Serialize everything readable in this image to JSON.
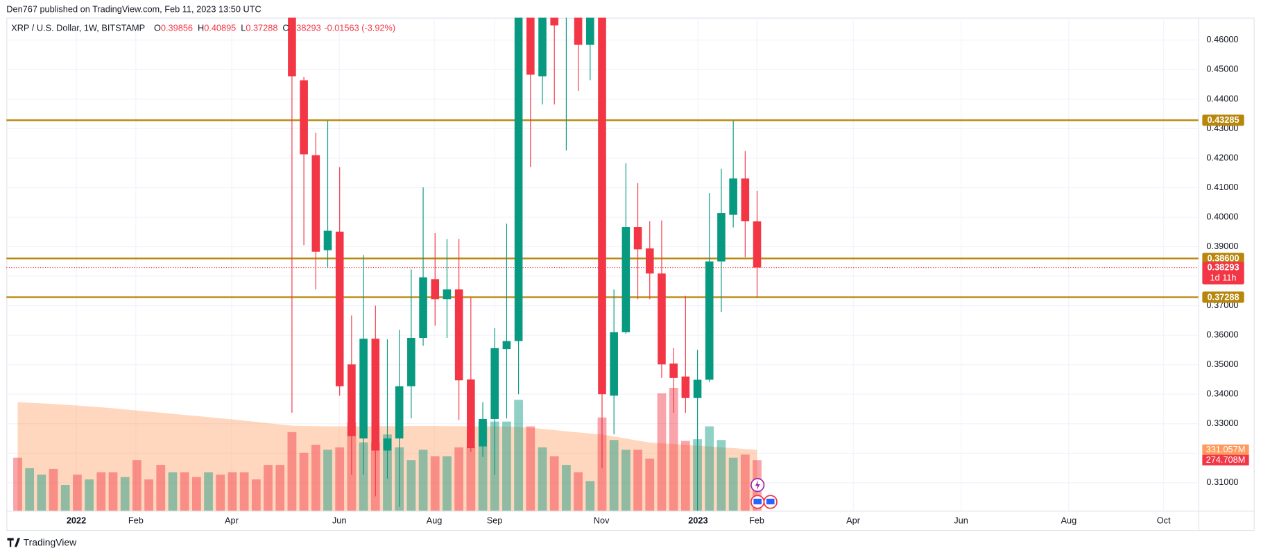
{
  "header": {
    "published": "Den767 published on TradingView.com, Feb 11, 2023 13:50 UTC"
  },
  "footer": {
    "brand": "TradingView"
  },
  "chart_data": {
    "type": "candlestick",
    "title": "XRP / U.S. Dollar, 1W, BITSTAMP",
    "legend_keys": [
      "O",
      "H",
      "L",
      "C"
    ],
    "change": "-0.01563 (-3.92%)",
    "countdown": "1d 11h",
    "up_color": "#089981",
    "down_color": "#f23645",
    "level_color": "#b8860b",
    "grid": true,
    "categories": [
      null,
      null,
      null,
      null,
      null,
      null,
      null,
      null,
      null,
      null,
      null,
      null,
      null,
      null,
      null,
      null,
      null,
      null,
      null,
      null,
      null,
      null,
      null,
      null,
      null,
      null,
      null,
      null,
      null,
      null,
      null,
      null,
      null,
      null,
      null,
      null,
      null,
      null,
      null,
      null,
      null,
      null,
      null,
      null,
      null,
      null,
      null,
      null,
      null,
      null,
      null,
      null,
      null,
      null,
      null,
      null,
      null,
      null,
      null,
      null,
      null,
      null,
      null
    ],
    "candles": [
      null,
      null,
      null,
      null,
      null,
      null,
      null,
      null,
      null,
      null,
      null,
      null,
      null,
      null,
      null,
      null,
      null,
      null,
      null,
      null,
      null,
      null,
      null,
      [
        0.47,
        0.49,
        0.3337,
        0.4477
      ],
      [
        0.4464,
        0.4475,
        0.3905,
        0.4213
      ],
      [
        0.421,
        0.4286,
        0.3755,
        0.3883
      ],
      [
        0.3888,
        0.4327,
        0.3828,
        0.3954
      ],
      [
        0.3951,
        0.4169,
        0.3395,
        0.3427
      ],
      [
        0.3501,
        0.3667,
        0.3127,
        0.3258
      ],
      [
        0.325,
        0.3872,
        0.3127,
        0.3588
      ],
      [
        0.3588,
        0.37,
        0.3054,
        0.3209
      ],
      [
        0.3209,
        0.3586,
        0.3114,
        0.325
      ],
      [
        0.325,
        0.3618,
        0.3018,
        0.3427
      ],
      [
        0.3427,
        0.3823,
        0.3318,
        0.3591
      ],
      [
        0.3591,
        0.4101,
        0.3564,
        0.3796
      ],
      [
        0.379,
        0.3946,
        0.3632,
        0.3722
      ],
      [
        0.3722,
        0.3926,
        0.3591,
        0.3755
      ],
      [
        0.3755,
        0.3926,
        0.3313,
        0.3447
      ],
      [
        0.345,
        0.3727,
        0.3204,
        0.3217
      ],
      [
        0.3223,
        0.3373,
        0.3187,
        0.3316
      ],
      [
        0.3316,
        0.3624,
        0.3127,
        0.3556
      ],
      [
        0.3553,
        0.3978,
        0.3318,
        0.358
      ],
      [
        0.358,
        0.48,
        0.34,
        0.47
      ],
      [
        0.475,
        0.49,
        0.4169,
        0.4483
      ],
      [
        0.4477,
        0.48,
        0.4382,
        0.47
      ],
      [
        0.475,
        0.485,
        0.4382,
        0.465
      ],
      [
        0.47,
        0.485,
        0.4226,
        0.475
      ],
      [
        0.475,
        0.49,
        0.4428,
        0.4584
      ],
      [
        0.4584,
        0.485,
        0.4464,
        0.472
      ],
      [
        0.478,
        0.49,
        0.3149,
        0.34
      ],
      [
        0.3395,
        0.3755,
        0.3264,
        0.361
      ],
      [
        0.361,
        0.4183,
        0.3605,
        0.3967
      ],
      [
        0.3967,
        0.4115,
        0.3722,
        0.3891
      ],
      [
        0.3894,
        0.3986,
        0.3722,
        0.3809
      ],
      [
        0.3809,
        0.3989,
        0.3455,
        0.3501
      ],
      [
        0.3504,
        0.3556,
        0.3337,
        0.3455
      ],
      [
        0.346,
        0.3733,
        0.3337,
        0.3387
      ],
      [
        0.3387,
        0.355,
        0.3005,
        0.3449
      ],
      [
        0.3449,
        0.4082,
        0.3441,
        0.385
      ],
      [
        0.385,
        0.4164,
        0.3678,
        0.4014
      ],
      [
        0.4008,
        0.4327,
        0.3965,
        0.4131
      ],
      [
        0.4131,
        0.4224,
        0.3864,
        0.3986
      ],
      [
        0.39856,
        0.40895,
        0.37288,
        0.38293
      ]
    ],
    "volume": {
      "values": [
        288,
        231,
        196,
        227,
        140,
        196,
        170,
        209,
        209,
        183,
        275,
        170,
        249,
        209,
        209,
        183,
        209,
        196,
        209,
        209,
        170,
        249,
        249,
        427,
        314,
        358,
        331,
        344,
        480,
        371,
        371,
        414,
        344,
        275,
        331,
        296,
        296,
        344,
        344,
        484,
        484,
        484,
        602,
        458,
        344,
        296,
        249,
        209,
        161,
        506,
        384,
        331,
        331,
        283,
        637,
        667,
        379,
        388,
        458,
        384,
        288,
        305,
        274.708
      ],
      "value_labels": [
        null,
        null,
        null,
        null,
        null,
        null,
        null,
        null,
        null,
        null,
        null,
        null,
        null,
        null,
        null,
        null,
        null,
        null,
        null,
        null,
        null,
        null,
        null,
        null,
        null,
        null,
        null,
        null,
        null,
        null,
        null,
        null,
        null,
        null,
        null,
        null,
        null,
        null,
        null,
        null,
        null,
        null,
        null,
        null,
        null,
        null,
        null,
        null,
        null,
        null,
        null,
        null,
        null,
        null,
        null,
        null,
        null,
        null,
        null,
        null,
        null,
        null,
        "274.708M"
      ],
      "colors": [
        "#f23645",
        "#089981",
        "#089981",
        "#f23645",
        "#089981",
        "#f23645",
        "#089981",
        "#f23645",
        "#f23645",
        "#089981",
        "#f23645",
        "#f23645",
        "#f23645",
        "#089981",
        "#f23645",
        "#f23645",
        "#089981",
        "#f23645",
        "#f23645",
        "#f23645",
        "#f23645",
        "#f23645",
        "#f23645",
        "#f23645",
        "#f23645",
        "#f23645",
        "#089981",
        "#f23645",
        "#f23645",
        "#089981",
        "#f23645",
        "#089981",
        "#089981",
        "#089981",
        "#089981",
        "#f23645",
        "#089981",
        "#f23645",
        "#f23645",
        "#089981",
        "#089981",
        "#089981",
        "#089981",
        "#f23645",
        "#089981",
        "#f23645",
        "#089981",
        "#f23645",
        "#089981",
        "#f23645",
        "#089981",
        "#089981",
        "#f23645",
        "#f23645",
        "#f23645",
        "#f23645",
        "#f23645",
        "#089981",
        "#089981",
        "#089981",
        "#089981",
        "#f23645",
        "#f23645"
      ]
    },
    "volume_ma": {
      "color": "#ff9a5c",
      "values": [
        589,
        586,
        583,
        579,
        575,
        571,
        566,
        561,
        556,
        550,
        544,
        538,
        532,
        526,
        520,
        514,
        508,
        502,
        496,
        489,
        482,
        475,
        468,
        462,
        460,
        459,
        458,
        458,
        458,
        458,
        459,
        459,
        459,
        460,
        460,
        460,
        459,
        459,
        458,
        458,
        458,
        458,
        455,
        450,
        444,
        438,
        431,
        425,
        419,
        414,
        403,
        392,
        381,
        370,
        366,
        362,
        358,
        353,
        349,
        344,
        340,
        335,
        331.057
      ],
      "value_labels": [
        null,
        null,
        null,
        null,
        null,
        null,
        null,
        null,
        null,
        null,
        null,
        null,
        null,
        null,
        null,
        null,
        null,
        null,
        null,
        null,
        null,
        null,
        null,
        null,
        null,
        null,
        null,
        null,
        null,
        null,
        null,
        null,
        null,
        null,
        null,
        null,
        null,
        null,
        null,
        null,
        null,
        null,
        null,
        null,
        null,
        null,
        null,
        null,
        null,
        null,
        null,
        null,
        null,
        null,
        null,
        null,
        null,
        null,
        null,
        null,
        null,
        null,
        "331.057M"
      ]
    },
    "vlim": [
      0,
      1200
    ],
    "levels": [
      0.43285,
      {
        "value": 0.386,
        "label": "0.38600"
      },
      0.37288
    ],
    "xlim": [
      -0.94,
      98.99
    ],
    "xticks": [
      {
        "value": 4.92,
        "label": "2022"
      },
      {
        "value": 9.91,
        "label": "Feb"
      },
      {
        "value": 17.94,
        "label": "Apr"
      },
      {
        "value": 26.97,
        "label": "Jun"
      },
      {
        "value": 34.93,
        "label": "Aug"
      },
      {
        "value": 39.99,
        "label": "Sep"
      },
      {
        "value": 48.95,
        "label": "Nov"
      },
      {
        "value": 57.05,
        "label": "2023"
      },
      {
        "value": 61.97,
        "label": "Feb"
      },
      {
        "value": 70.06,
        "label": "Apr"
      },
      {
        "value": 79.1,
        "label": "Jun"
      },
      {
        "value": 88.13,
        "label": "Aug"
      },
      {
        "value": 96.09,
        "label": "Oct"
      }
    ],
    "ylim": [
      0.3005,
      0.4676
    ],
    "yticks": [
      {
        "value": 0.31,
        "label": "0.31000"
      },
      {
        "value": 0.32,
        "label": "0.32000"
      },
      {
        "value": 0.33,
        "label": "0.33000"
      },
      {
        "value": 0.34,
        "label": "0.34000"
      },
      {
        "value": 0.35,
        "label": "0.35000"
      },
      {
        "value": 0.36,
        "label": "0.36000"
      },
      {
        "value": 0.37,
        "label": "0.37000"
      },
      {
        "value": 0.38,
        "label": "0.38000"
      },
      {
        "value": 0.39,
        "label": "0.39000"
      },
      {
        "value": 0.4,
        "label": "0.40000"
      },
      {
        "value": 0.41,
        "label": "0.41000"
      },
      {
        "value": 0.42,
        "label": "0.42000"
      },
      {
        "value": 0.43,
        "label": "0.43000"
      },
      {
        "value": 0.44,
        "label": "0.44000"
      },
      {
        "value": 0.45,
        "label": "0.45000"
      },
      {
        "value": 0.46,
        "label": "0.46000"
      }
    ]
  }
}
